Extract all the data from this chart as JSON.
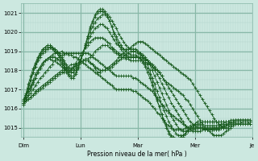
{
  "title": "",
  "xlabel": "Pression niveau de la mer( hPa )",
  "ylabel": "",
  "bg_color": "#cce8e0",
  "plot_bg_color": "#cce8e0",
  "grid_minor_color": "#b0d4c8",
  "grid_major_color": "#88b8a8",
  "line_color": "#1a5c20",
  "marker_color": "#1a5c20",
  "ylim": [
    1014.5,
    1021.5
  ],
  "yticks": [
    1015,
    1016,
    1017,
    1018,
    1019,
    1020,
    1021
  ],
  "n_points": 96,
  "day_positions": [
    0,
    24,
    48,
    72,
    96
  ],
  "day_labels": [
    "Dim",
    "Lun",
    "Mar",
    "Mer",
    "Je"
  ],
  "series": [
    [
      1016.3,
      1016.4,
      1016.5,
      1016.6,
      1016.7,
      1016.8,
      1016.9,
      1017.0,
      1017.1,
      1017.2,
      1017.3,
      1017.4,
      1017.5,
      1017.6,
      1017.7,
      1017.8,
      1017.9,
      1017.9,
      1018.0,
      1018.1,
      1018.1,
      1018.2,
      1018.2,
      1018.3,
      1018.4,
      1018.5,
      1018.5,
      1018.5,
      1018.4,
      1018.3,
      1018.1,
      1017.9,
      1017.9,
      1018.0,
      1018.0,
      1018.1,
      1018.2,
      1018.3,
      1018.4,
      1018.5,
      1018.7,
      1018.8,
      1018.9,
      1019.0,
      1019.1,
      1019.2,
      1019.3,
      1019.4,
      1019.5,
      1019.5,
      1019.5,
      1019.4,
      1019.3,
      1019.2,
      1019.1,
      1019.0,
      1018.9,
      1018.8,
      1018.7,
      1018.6,
      1018.5,
      1018.4,
      1018.3,
      1018.2,
      1018.1,
      1018.0,
      1017.9,
      1017.8,
      1017.7,
      1017.6,
      1017.5,
      1017.3,
      1017.1,
      1016.9,
      1016.7,
      1016.5,
      1016.3,
      1016.1,
      1015.9,
      1015.7,
      1015.5,
      1015.3,
      1015.2,
      1015.1,
      1015.0,
      1015.0,
      1015.0,
      1015.1,
      1015.2,
      1015.2,
      1015.2,
      1015.2,
      1015.3,
      1015.3,
      1015.3,
      1015.2
    ],
    [
      1016.3,
      1016.4,
      1016.5,
      1016.6,
      1016.7,
      1016.9,
      1017.0,
      1017.1,
      1017.2,
      1017.3,
      1017.4,
      1017.5,
      1017.6,
      1017.7,
      1017.8,
      1017.9,
      1018.0,
      1018.0,
      1018.1,
      1018.2,
      1018.3,
      1018.3,
      1018.3,
      1018.4,
      1018.4,
      1018.5,
      1018.5,
      1018.5,
      1018.4,
      1018.3,
      1018.2,
      1018.1,
      1018.0,
      1018.0,
      1018.0,
      1018.1,
      1018.1,
      1018.2,
      1018.3,
      1018.4,
      1018.5,
      1018.6,
      1018.7,
      1018.8,
      1018.9,
      1019.0,
      1019.0,
      1019.0,
      1018.9,
      1018.8,
      1018.7,
      1018.6,
      1018.5,
      1018.4,
      1018.3,
      1018.2,
      1018.0,
      1017.9,
      1017.7,
      1017.5,
      1017.4,
      1017.3,
      1017.2,
      1017.1,
      1017.0,
      1016.9,
      1016.8,
      1016.7,
      1016.5,
      1016.4,
      1016.2,
      1016.0,
      1015.8,
      1015.6,
      1015.4,
      1015.2,
      1015.0,
      1014.9,
      1014.8,
      1014.7,
      1014.6,
      1014.6,
      1014.6,
      1014.6,
      1014.7,
      1014.8,
      1014.9,
      1015.0,
      1015.1,
      1015.2,
      1015.2,
      1015.2,
      1015.2,
      1015.2,
      1015.2,
      1015.2
    ],
    [
      1016.4,
      1016.5,
      1016.7,
      1016.8,
      1017.0,
      1017.2,
      1017.4,
      1017.6,
      1017.7,
      1017.9,
      1018.0,
      1018.2,
      1018.3,
      1018.5,
      1018.6,
      1018.7,
      1018.8,
      1018.8,
      1018.9,
      1018.9,
      1018.9,
      1018.9,
      1018.9,
      1018.9,
      1018.9,
      1018.9,
      1018.9,
      1018.9,
      1018.8,
      1018.7,
      1018.6,
      1018.5,
      1018.4,
      1018.3,
      1018.2,
      1018.1,
      1018.0,
      1017.9,
      1017.8,
      1017.7,
      1017.7,
      1017.7,
      1017.7,
      1017.7,
      1017.7,
      1017.7,
      1017.6,
      1017.6,
      1017.5,
      1017.4,
      1017.3,
      1017.2,
      1017.1,
      1017.0,
      1016.9,
      1016.7,
      1016.6,
      1016.4,
      1016.2,
      1016.1,
      1015.9,
      1015.8,
      1015.7,
      1015.6,
      1015.5,
      1015.4,
      1015.3,
      1015.2,
      1015.1,
      1015.0,
      1015.0,
      1015.0,
      1015.0,
      1015.0,
      1015.0,
      1015.0,
      1014.9,
      1014.9,
      1014.9,
      1014.9,
      1014.9,
      1014.9,
      1014.9,
      1015.0,
      1015.0,
      1015.1,
      1015.1,
      1015.2,
      1015.2,
      1015.3,
      1015.3,
      1015.3,
      1015.3,
      1015.3,
      1015.3,
      1015.3
    ],
    [
      1016.5,
      1016.7,
      1016.9,
      1017.1,
      1017.4,
      1017.6,
      1017.9,
      1018.1,
      1018.3,
      1018.5,
      1018.6,
      1018.7,
      1018.8,
      1018.9,
      1018.9,
      1018.9,
      1019.0,
      1018.9,
      1018.9,
      1018.8,
      1018.8,
      1018.7,
      1018.7,
      1018.6,
      1018.5,
      1018.4,
      1018.3,
      1018.2,
      1018.1,
      1018.0,
      1017.9,
      1017.8,
      1017.7,
      1017.6,
      1017.5,
      1017.4,
      1017.3,
      1017.2,
      1017.1,
      1017.0,
      1017.0,
      1017.0,
      1017.0,
      1017.0,
      1017.0,
      1017.0,
      1016.9,
      1016.9,
      1016.8,
      1016.7,
      1016.6,
      1016.5,
      1016.4,
      1016.3,
      1016.1,
      1016.0,
      1015.8,
      1015.7,
      1015.5,
      1015.4,
      1015.2,
      1015.1,
      1015.0,
      1014.9,
      1014.9,
      1014.9,
      1014.9,
      1014.9,
      1015.0,
      1015.0,
      1015.1,
      1015.1,
      1015.1,
      1015.1,
      1015.1,
      1015.1,
      1015.1,
      1015.1,
      1015.1,
      1015.1,
      1015.1,
      1015.1,
      1015.1,
      1015.2,
      1015.2,
      1015.3,
      1015.3,
      1015.4,
      1015.4,
      1015.4,
      1015.4,
      1015.4,
      1015.4,
      1015.4,
      1015.4,
      1015.4
    ],
    [
      1016.2,
      1016.4,
      1016.7,
      1017.0,
      1017.3,
      1017.6,
      1017.9,
      1018.1,
      1018.3,
      1018.5,
      1018.6,
      1018.7,
      1018.7,
      1018.7,
      1018.6,
      1018.5,
      1018.3,
      1018.2,
      1018.0,
      1017.9,
      1018.0,
      1018.1,
      1018.3,
      1018.4,
      1018.5,
      1018.5,
      1018.6,
      1018.6,
      1018.7,
      1018.8,
      1019.0,
      1019.1,
      1019.2,
      1019.3,
      1019.3,
      1019.3,
      1019.2,
      1019.1,
      1019.0,
      1018.9,
      1018.8,
      1018.7,
      1018.7,
      1018.6,
      1018.6,
      1018.5,
      1018.5,
      1018.5,
      1018.5,
      1018.5,
      1018.5,
      1018.4,
      1018.4,
      1018.3,
      1018.2,
      1018.1,
      1018.0,
      1017.9,
      1017.7,
      1017.5,
      1017.3,
      1017.1,
      1016.9,
      1016.7,
      1016.5,
      1016.3,
      1016.1,
      1015.9,
      1015.7,
      1015.5,
      1015.3,
      1015.2,
      1015.1,
      1015.0,
      1015.0,
      1015.0,
      1014.9,
      1014.9,
      1014.9,
      1014.9,
      1014.9,
      1014.9,
      1014.9,
      1015.0,
      1015.0,
      1015.1,
      1015.2,
      1015.3,
      1015.3,
      1015.4,
      1015.4,
      1015.4,
      1015.4,
      1015.4,
      1015.4,
      1015.4
    ],
    [
      1016.3,
      1016.6,
      1016.9,
      1017.2,
      1017.5,
      1017.8,
      1018.0,
      1018.2,
      1018.4,
      1018.5,
      1018.6,
      1018.6,
      1018.5,
      1018.5,
      1018.4,
      1018.3,
      1018.2,
      1018.1,
      1018.0,
      1017.9,
      1018.0,
      1018.2,
      1018.4,
      1018.6,
      1018.8,
      1019.0,
      1019.2,
      1019.3,
      1019.5,
      1019.6,
      1019.7,
      1019.7,
      1019.7,
      1019.7,
      1019.6,
      1019.5,
      1019.4,
      1019.2,
      1019.1,
      1019.0,
      1018.9,
      1018.8,
      1018.8,
      1018.7,
      1018.7,
      1018.7,
      1018.7,
      1018.7,
      1018.7,
      1018.7,
      1018.6,
      1018.6,
      1018.5,
      1018.4,
      1018.2,
      1018.0,
      1017.8,
      1017.6,
      1017.3,
      1017.1,
      1016.8,
      1016.6,
      1016.3,
      1016.1,
      1015.9,
      1015.7,
      1015.5,
      1015.3,
      1015.1,
      1015.0,
      1014.9,
      1014.8,
      1014.8,
      1014.8,
      1014.8,
      1014.9,
      1014.9,
      1014.9,
      1014.9,
      1014.9,
      1015.0,
      1015.0,
      1015.0,
      1015.1,
      1015.1,
      1015.2,
      1015.2,
      1015.3,
      1015.3,
      1015.3,
      1015.3,
      1015.3,
      1015.3,
      1015.3,
      1015.3,
      1015.3
    ],
    [
      1016.4,
      1016.7,
      1017.1,
      1017.5,
      1017.9,
      1018.2,
      1018.5,
      1018.7,
      1018.9,
      1019.0,
      1019.1,
      1019.2,
      1019.2,
      1019.1,
      1019.0,
      1018.9,
      1018.7,
      1018.5,
      1018.3,
      1018.1,
      1018.0,
      1018.0,
      1018.1,
      1018.3,
      1018.6,
      1018.9,
      1019.2,
      1019.5,
      1019.8,
      1020.0,
      1020.2,
      1020.3,
      1020.4,
      1020.4,
      1020.3,
      1020.2,
      1020.0,
      1019.8,
      1019.6,
      1019.4,
      1019.3,
      1019.2,
      1019.1,
      1019.1,
      1019.1,
      1019.1,
      1019.1,
      1019.1,
      1019.0,
      1018.9,
      1018.8,
      1018.7,
      1018.5,
      1018.3,
      1018.0,
      1017.7,
      1017.4,
      1017.1,
      1016.8,
      1016.5,
      1016.2,
      1015.9,
      1015.6,
      1015.4,
      1015.2,
      1015.0,
      1014.9,
      1014.8,
      1014.8,
      1014.8,
      1014.9,
      1014.9,
      1014.9,
      1015.0,
      1015.0,
      1015.0,
      1015.0,
      1015.0,
      1015.0,
      1015.0,
      1015.0,
      1015.0,
      1015.0,
      1015.0,
      1015.1,
      1015.1,
      1015.2,
      1015.2,
      1015.3,
      1015.3,
      1015.3,
      1015.3,
      1015.3,
      1015.3,
      1015.3,
      1015.3
    ],
    [
      1016.4,
      1016.8,
      1017.3,
      1017.7,
      1018.1,
      1018.4,
      1018.7,
      1018.9,
      1019.1,
      1019.2,
      1019.3,
      1019.3,
      1019.2,
      1019.1,
      1019.0,
      1018.8,
      1018.6,
      1018.4,
      1018.2,
      1018.0,
      1017.9,
      1017.9,
      1018.0,
      1018.2,
      1018.5,
      1018.9,
      1019.3,
      1019.7,
      1020.0,
      1020.3,
      1020.5,
      1020.7,
      1020.8,
      1020.9,
      1020.9,
      1020.9,
      1020.8,
      1020.6,
      1020.4,
      1020.2,
      1019.9,
      1019.7,
      1019.5,
      1019.3,
      1019.2,
      1019.1,
      1019.1,
      1019.1,
      1019.0,
      1018.9,
      1018.7,
      1018.5,
      1018.3,
      1018.0,
      1017.6,
      1017.3,
      1016.9,
      1016.6,
      1016.2,
      1015.9,
      1015.6,
      1015.3,
      1015.1,
      1014.9,
      1014.7,
      1014.6,
      1014.6,
      1014.6,
      1014.7,
      1014.8,
      1014.9,
      1015.0,
      1015.1,
      1015.2,
      1015.2,
      1015.3,
      1015.3,
      1015.3,
      1015.3,
      1015.3,
      1015.3,
      1015.3,
      1015.3,
      1015.3,
      1015.3,
      1015.3,
      1015.3,
      1015.3,
      1015.3,
      1015.3,
      1015.3,
      1015.3,
      1015.3,
      1015.3,
      1015.3,
      1015.3
    ],
    [
      1016.3,
      1016.7,
      1017.1,
      1017.5,
      1017.9,
      1018.2,
      1018.5,
      1018.8,
      1019.0,
      1019.1,
      1019.2,
      1019.2,
      1019.1,
      1019.0,
      1018.9,
      1018.7,
      1018.5,
      1018.3,
      1018.0,
      1017.8,
      1017.7,
      1017.7,
      1017.9,
      1018.2,
      1018.5,
      1018.9,
      1019.3,
      1019.8,
      1020.2,
      1020.5,
      1020.8,
      1021.0,
      1021.1,
      1021.1,
      1021.0,
      1020.8,
      1020.6,
      1020.3,
      1020.0,
      1019.8,
      1019.5,
      1019.3,
      1019.1,
      1019.0,
      1018.9,
      1018.8,
      1018.8,
      1018.8,
      1018.7,
      1018.6,
      1018.4,
      1018.2,
      1017.9,
      1017.6,
      1017.2,
      1016.8,
      1016.4,
      1016.1,
      1015.7,
      1015.4,
      1015.1,
      1014.8,
      1014.6,
      1014.5,
      1014.4,
      1014.4,
      1014.5,
      1014.6,
      1014.7,
      1014.9,
      1015.0,
      1015.1,
      1015.2,
      1015.3,
      1015.3,
      1015.3,
      1015.3,
      1015.3,
      1015.3,
      1015.3,
      1015.3,
      1015.3,
      1015.3,
      1015.3,
      1015.3,
      1015.3,
      1015.3,
      1015.3,
      1015.3,
      1015.3,
      1015.3,
      1015.3,
      1015.3,
      1015.3,
      1015.3,
      1015.3
    ],
    [
      1016.2,
      1016.6,
      1017.0,
      1017.5,
      1017.9,
      1018.3,
      1018.6,
      1018.9,
      1019.1,
      1019.2,
      1019.3,
      1019.3,
      1019.2,
      1019.0,
      1018.9,
      1018.7,
      1018.4,
      1018.2,
      1017.9,
      1017.7,
      1017.6,
      1017.6,
      1017.8,
      1018.1,
      1018.5,
      1018.9,
      1019.4,
      1019.8,
      1020.3,
      1020.6,
      1020.9,
      1021.1,
      1021.2,
      1021.2,
      1021.1,
      1020.9,
      1020.6,
      1020.3,
      1019.9,
      1019.6,
      1019.3,
      1019.1,
      1018.9,
      1018.8,
      1018.7,
      1018.7,
      1018.7,
      1018.7,
      1018.7,
      1018.6,
      1018.5,
      1018.3,
      1018.1,
      1017.8,
      1017.4,
      1017.0,
      1016.5,
      1016.1,
      1015.7,
      1015.3,
      1015.0,
      1014.7,
      1014.5,
      1014.3,
      1014.2,
      1014.2,
      1014.3,
      1014.5,
      1014.7,
      1014.9,
      1015.0,
      1015.1,
      1015.2,
      1015.3,
      1015.3,
      1015.3,
      1015.3,
      1015.3,
      1015.3,
      1015.3,
      1015.3,
      1015.3,
      1015.3,
      1015.3,
      1015.3,
      1015.3,
      1015.3,
      1015.3,
      1015.3,
      1015.3,
      1015.3,
      1015.3,
      1015.3,
      1015.3,
      1015.3,
      1015.3
    ]
  ]
}
